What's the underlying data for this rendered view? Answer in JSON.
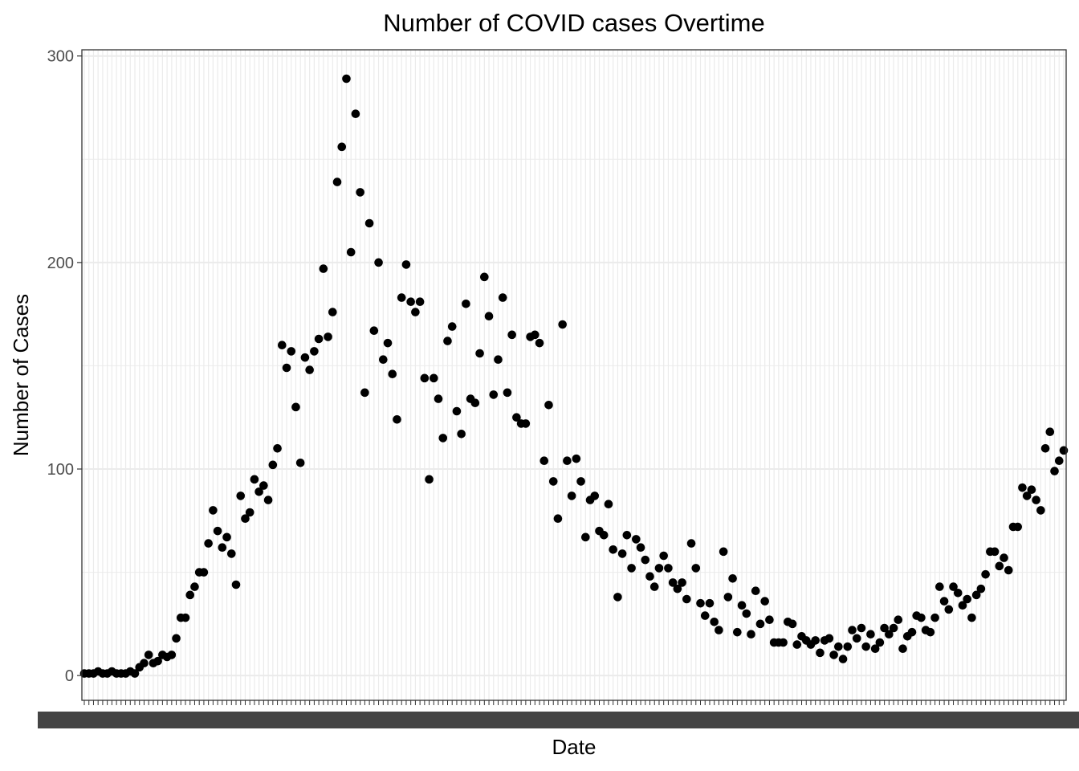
{
  "chart_data": {
    "type": "scatter",
    "title": "Number of COVID cases Overtime",
    "xlabel": "Date",
    "ylabel": "Number of Cases",
    "ylim": [
      -12,
      303
    ],
    "yticks": [
      0,
      100,
      200,
      300
    ],
    "grid": true,
    "legend": "none",
    "colors": {
      "point": "#000000",
      "grid": "#ebebeb",
      "border": "#333333",
      "background": "#ffffff"
    },
    "series": [
      {
        "values": [
          1,
          1,
          1,
          2,
          1,
          1,
          2,
          1,
          1,
          1,
          2,
          1,
          4,
          6,
          10,
          6,
          7,
          10,
          9,
          10,
          18,
          28,
          28,
          39,
          43,
          50,
          50,
          64,
          80,
          70,
          62,
          67,
          59,
          44,
          87,
          76,
          79,
          95,
          89,
          92,
          85,
          102,
          110,
          160,
          149,
          157,
          130,
          103,
          154,
          148,
          157,
          163,
          197,
          164,
          176,
          239,
          256,
          289,
          205,
          272,
          234,
          137,
          219,
          167,
          200,
          153,
          161,
          146,
          124,
          183,
          199,
          181,
          176,
          181,
          144,
          95,
          144,
          134,
          115,
          162,
          169,
          128,
          117,
          180,
          134,
          132,
          156,
          193,
          174,
          136,
          153,
          183,
          137,
          165,
          125,
          122,
          122,
          164,
          165,
          161,
          104,
          131,
          94,
          76,
          170,
          104,
          87,
          105,
          94,
          67,
          85,
          87,
          70,
          68,
          83,
          61,
          38,
          59,
          68,
          52,
          66,
          62,
          56,
          48,
          43,
          52,
          58,
          52,
          45,
          42,
          45,
          37,
          64,
          52,
          35,
          29,
          35,
          26,
          22,
          60,
          38,
          47,
          21,
          34,
          30,
          20,
          41,
          25,
          36,
          27,
          16,
          16,
          16,
          26,
          25,
          15,
          19,
          17,
          15,
          17,
          11,
          17,
          18,
          10,
          14,
          8,
          14,
          22,
          18,
          23,
          14,
          20,
          13,
          16,
          23,
          20,
          23,
          27,
          13,
          19,
          21,
          29,
          28,
          22,
          21,
          28,
          43,
          36,
          32,
          43,
          40,
          34,
          37,
          28,
          39,
          42,
          49,
          60,
          60,
          53,
          57,
          51,
          72,
          72,
          91,
          87,
          90,
          85,
          80,
          110,
          118,
          99,
          104,
          109
        ]
      }
    ]
  }
}
